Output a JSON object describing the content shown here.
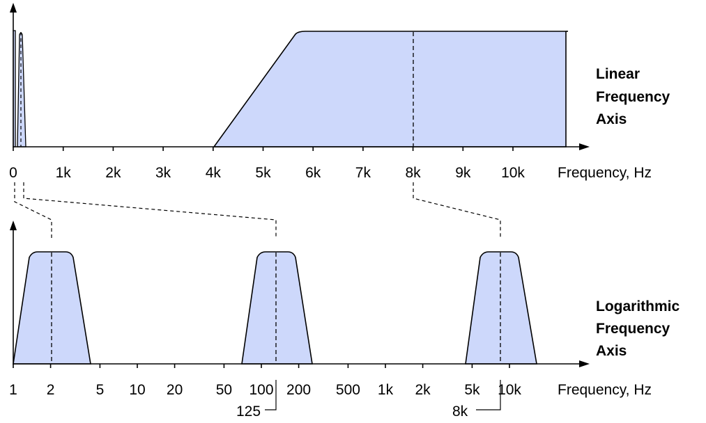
{
  "colors": {
    "fill": "#cdd8fb",
    "stroke": "#000000",
    "background": "#ffffff"
  },
  "linear_axis": {
    "label_lines": [
      "Linear",
      "Frequency",
      "Axis"
    ],
    "axis_title": "Frequency, Hz",
    "ticks": [
      "0",
      "1k",
      "2k",
      "3k",
      "4k",
      "5k",
      "6k",
      "7k",
      "8k",
      "9k",
      "10k"
    ]
  },
  "log_axis": {
    "label_lines": [
      "Logarithmic",
      "Frequency",
      "Axis"
    ],
    "axis_title": "Frequency, Hz",
    "ticks": [
      "1",
      "2",
      "5",
      "10",
      "20",
      "50",
      "100",
      "200",
      "500",
      "1k",
      "2k",
      "5k",
      "10k"
    ],
    "callouts": [
      "125",
      "8k"
    ]
  }
}
